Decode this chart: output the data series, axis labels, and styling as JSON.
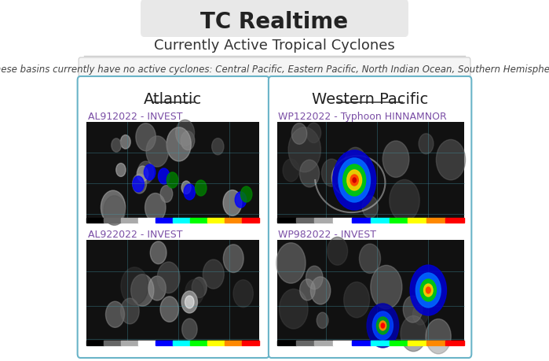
{
  "title": "TC Realtime",
  "subtitle": "Currently Active Tropical Cyclones",
  "inactive_note": "(These basins currently have no active cyclones: Central Pacific, Eastern Pacific, North Indian Ocean, Southern Hemisphere)",
  "bg_color": "#ffffff",
  "header_bg": "#e8e8e8",
  "panel_border_color": "#6ab4c8",
  "left_panel_title": "Atlantic",
  "right_panel_title": "Western Pacific",
  "left_items": [
    {
      "label": "AL912022 - INVEST"
    },
    {
      "label": "AL922022 - INVEST"
    }
  ],
  "right_items": [
    {
      "label": "WP122022 - Typhoon HINNAMNOR"
    },
    {
      "label": "WP982022 - INVEST"
    }
  ],
  "link_color": "#7b4fa6",
  "title_fontsize": 20,
  "subtitle_fontsize": 13,
  "note_fontsize": 8.5,
  "panel_title_fontsize": 14,
  "link_fontsize": 9,
  "separator_color": "#cccccc"
}
